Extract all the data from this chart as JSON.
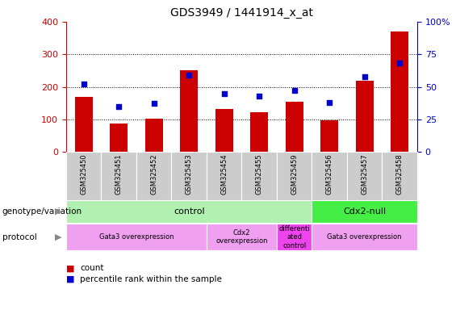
{
  "title": "GDS3949 / 1441914_x_at",
  "samples": [
    "GSM325450",
    "GSM325451",
    "GSM325452",
    "GSM325453",
    "GSM325454",
    "GSM325455",
    "GSM325459",
    "GSM325456",
    "GSM325457",
    "GSM325458"
  ],
  "counts": [
    170,
    88,
    102,
    252,
    133,
    121,
    153,
    97,
    219,
    370
  ],
  "percentile_ranks": [
    52,
    35,
    37,
    59,
    45,
    43,
    47,
    38,
    58,
    68
  ],
  "ylim_left": [
    0,
    400
  ],
  "ylim_right": [
    0,
    100
  ],
  "yticks_left": [
    0,
    100,
    200,
    300,
    400
  ],
  "yticks_right": [
    0,
    25,
    50,
    75,
    100
  ],
  "bar_color": "#cc0000",
  "dot_color": "#0000cc",
  "genotype_groups": [
    {
      "label": "control",
      "start": 0,
      "end": 7,
      "color": "#b0f0b0"
    },
    {
      "label": "Cdx2-null",
      "start": 7,
      "end": 10,
      "color": "#44ee44"
    }
  ],
  "protocol_groups": [
    {
      "label": "Gata3 overexpression",
      "start": 0,
      "end": 4,
      "color": "#f0a0f0"
    },
    {
      "label": "Cdx2\noverexpression",
      "start": 4,
      "end": 6,
      "color": "#f0a0f0"
    },
    {
      "label": "differenti\nated\ncontrol",
      "start": 6,
      "end": 7,
      "color": "#ee44ee"
    },
    {
      "label": "Gata3 overexpression",
      "start": 7,
      "end": 10,
      "color": "#f0a0f0"
    }
  ],
  "tick_bg_color": "#cccccc",
  "legend_labels": [
    "count",
    "percentile rank within the sample"
  ],
  "left_axis_color": "#cc0000",
  "right_axis_color": "#0000cc"
}
